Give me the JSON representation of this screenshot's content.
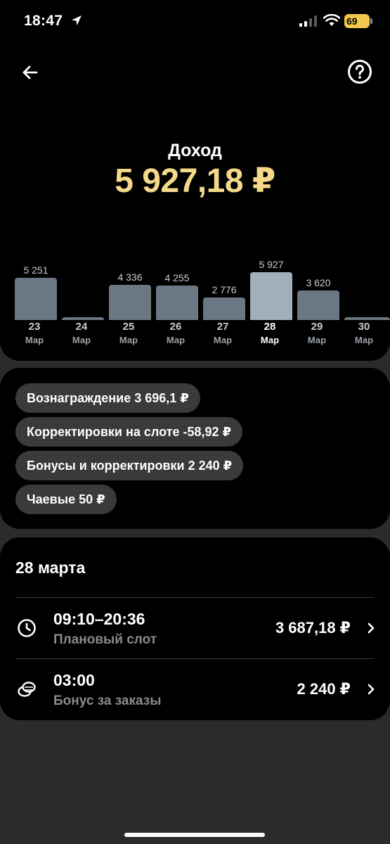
{
  "status_bar": {
    "time": "18:47",
    "battery": "69"
  },
  "header": {
    "title": "Доход",
    "total": "5 927,18 ₽"
  },
  "chart_data": {
    "type": "bar",
    "categories": [
      "23 Мар",
      "24 Мар",
      "25 Мар",
      "26 Мар",
      "27 Мар",
      "28 Мар",
      "29 Мар",
      "30 Мар"
    ],
    "values": [
      5251,
      0,
      4336,
      4255,
      2776,
      5927,
      3620,
      0
    ],
    "value_labels": [
      "5 251",
      "",
      "4 336",
      "4 255",
      "2 776",
      "5 927",
      "3 620",
      ""
    ],
    "days": [
      "23",
      "24",
      "25",
      "26",
      "27",
      "28",
      "29",
      "30"
    ],
    "month": "Мар",
    "selected_index": 5
  },
  "breakdown": {
    "items": [
      "Вознаграждение 3 696,1 ₽",
      "Корректировки на слоте -58,92 ₽",
      "Бонусы и корректировки 2 240 ₽",
      "Чаевые 50 ₽"
    ]
  },
  "day": {
    "title": "28 марта",
    "rows": [
      {
        "time": "09:10–20:36",
        "label": "Плановый слот",
        "amount": "3 687,18 ₽",
        "icon": "clock-icon"
      },
      {
        "time": "03:00",
        "label": "Бонус за заказы",
        "amount": "2 240 ₽",
        "icon": "coins-icon"
      }
    ]
  },
  "colors": {
    "accent": "#f5d98a",
    "bar": "#6b7785",
    "bar_active": "#a3aebb"
  }
}
